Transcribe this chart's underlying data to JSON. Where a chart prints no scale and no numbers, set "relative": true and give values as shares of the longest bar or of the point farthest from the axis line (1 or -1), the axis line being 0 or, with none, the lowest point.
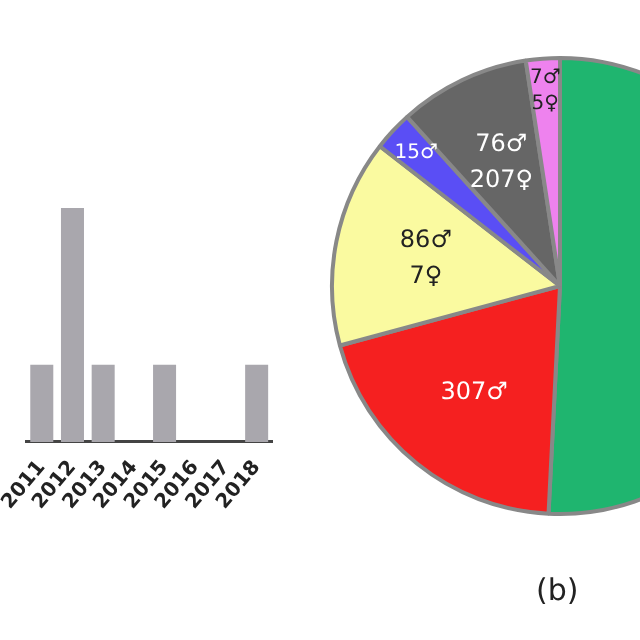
{
  "chart_data": [
    {
      "type": "bar",
      "relative": true,
      "categories": [
        "2011",
        "2012",
        "2013",
        "2014",
        "2015",
        "2016",
        "2017",
        "2018"
      ],
      "values": [
        0.33,
        1,
        0.33,
        0,
        0.33,
        0,
        0,
        0.33
      ],
      "color": "#a9a7ad",
      "grid": false,
      "legend": false
    },
    {
      "type": "pie",
      "categories": [
        null,
        "307♂",
        "86♂\n7♀",
        "15♂",
        "76♂\n207♀",
        "7♂\n5♀"
      ],
      "values": [
        50.8,
        20,
        14.7,
        2.8,
        9.3,
        2.4
      ],
      "colors": [
        "#1fb56f",
        "#f52020",
        "#fafaa0",
        "#5a4ef5",
        "#666666",
        "#ee82ee"
      ],
      "legend": false,
      "annotations": [
        "(b)"
      ]
    }
  ]
}
